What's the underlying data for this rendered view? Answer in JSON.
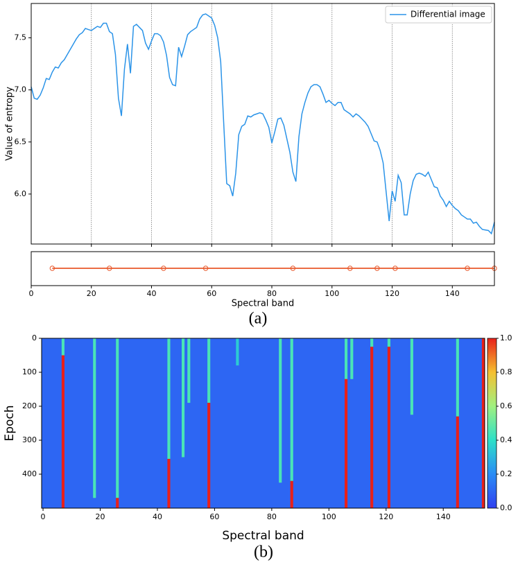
{
  "chart_data": [
    {
      "type": "line",
      "ylabel": "Value of entropy",
      "legend": "upper right",
      "grid": true,
      "xlim": [
        0,
        154
      ],
      "xticks": [
        20,
        40,
        60,
        80,
        100,
        120,
        140
      ],
      "ylim": [
        5.52,
        7.83
      ],
      "yticks": [
        {
          "value": 6.0,
          "label": "6.0"
        },
        {
          "value": 6.5,
          "label": "6.5"
        },
        {
          "value": 7.0,
          "label": "7.0"
        },
        {
          "value": 7.5,
          "label": "7.5"
        }
      ],
      "series": [
        {
          "name": "Differential image",
          "color": "#2a93e8",
          "values": [
            7.03,
            6.92,
            6.91,
            6.95,
            7.02,
            7.11,
            7.1,
            7.17,
            7.22,
            7.21,
            7.26,
            7.29,
            7.34,
            7.39,
            7.44,
            7.49,
            7.53,
            7.55,
            7.59,
            7.58,
            7.57,
            7.59,
            7.61,
            7.6,
            7.64,
            7.64,
            7.56,
            7.54,
            7.34,
            6.92,
            6.75,
            7.2,
            7.44,
            7.16,
            7.61,
            7.63,
            7.6,
            7.57,
            7.45,
            7.39,
            7.47,
            7.54,
            7.54,
            7.52,
            7.46,
            7.33,
            7.12,
            7.05,
            7.04,
            7.41,
            7.32,
            7.42,
            7.53,
            7.56,
            7.58,
            7.6,
            7.68,
            7.72,
            7.73,
            7.71,
            7.69,
            7.62,
            7.5,
            7.27,
            6.68,
            6.1,
            6.08,
            5.98,
            6.2,
            6.57,
            6.65,
            6.67,
            6.75,
            6.74,
            6.76,
            6.77,
            6.78,
            6.77,
            6.71,
            6.64,
            6.49,
            6.6,
            6.72,
            6.73,
            6.66,
            6.53,
            6.4,
            6.21,
            6.12,
            6.55,
            6.77,
            6.88,
            6.97,
            7.03,
            7.05,
            7.05,
            7.03,
            6.96,
            6.88,
            6.9,
            6.87,
            6.85,
            6.88,
            6.88,
            6.81,
            6.79,
            6.77,
            6.74,
            6.77,
            6.75,
            6.72,
            6.69,
            6.65,
            6.58,
            6.51,
            6.5,
            6.42,
            6.3,
            6.02,
            5.74,
            6.03,
            5.93,
            6.18,
            6.11,
            5.8,
            5.8,
            6.0,
            6.13,
            6.19,
            6.2,
            6.19,
            6.17,
            6.21,
            6.14,
            6.07,
            6.06,
            5.98,
            5.94,
            5.88,
            5.93,
            5.89,
            5.86,
            5.84,
            5.8,
            5.78,
            5.76,
            5.76,
            5.72,
            5.73,
            5.69,
            5.66,
            5.655,
            5.65,
            5.62,
            5.73
          ]
        }
      ]
    },
    {
      "type": "strip",
      "xlabel": "Spectral band",
      "caption": "(a)",
      "color": "#e8572a",
      "xlim": [
        0,
        154
      ],
      "xticks": [
        0,
        20,
        40,
        60,
        80,
        100,
        120,
        140
      ],
      "x": [
        7,
        26,
        44,
        58,
        87,
        106,
        115,
        121,
        145,
        154
      ]
    },
    {
      "type": "heatmap",
      "xlabel": "Spectral band",
      "ylabel": "Epoch",
      "caption": "(b)",
      "xlim": [
        -0.5,
        154.5
      ],
      "xticks": [
        0,
        20,
        40,
        60,
        80,
        100,
        120,
        140
      ],
      "ylim": [
        0,
        500
      ],
      "yticks": [
        0,
        100,
        200,
        300,
        400
      ],
      "clim": [
        0,
        1
      ],
      "cticks": [
        {
          "value": 0,
          "label": "0.0"
        },
        {
          "value": 0.2,
          "label": "0.2"
        },
        {
          "value": 0.4,
          "label": "0.4"
        },
        {
          "value": 0.6,
          "label": "0.6"
        },
        {
          "value": 0.8,
          "label": "0.8"
        },
        {
          "value": 1,
          "label": "1.0"
        }
      ],
      "background": 0.1,
      "cells": [
        [
          7,
          0,
          50,
          0.45
        ],
        [
          7,
          50,
          500,
          1
        ],
        [
          18,
          0,
          470,
          0.45
        ],
        [
          26,
          0,
          470,
          0.45
        ],
        [
          26,
          470,
          500,
          1
        ],
        [
          44,
          0,
          355,
          0.45
        ],
        [
          44,
          355,
          500,
          1
        ],
        [
          49,
          0,
          350,
          0.45
        ],
        [
          51,
          0,
          190,
          0.45
        ],
        [
          58,
          0,
          190,
          0.45
        ],
        [
          58,
          190,
          500,
          1
        ],
        [
          68,
          0,
          80,
          0.35
        ],
        [
          83,
          0,
          425,
          0.45
        ],
        [
          87,
          0,
          420,
          0.45
        ],
        [
          87,
          420,
          500,
          1
        ],
        [
          106,
          0,
          120,
          0.45
        ],
        [
          106,
          120,
          500,
          1
        ],
        [
          108,
          0,
          120,
          0.45
        ],
        [
          115,
          0,
          25,
          0.45
        ],
        [
          115,
          25,
          500,
          1
        ],
        [
          121,
          0,
          25,
          0.45
        ],
        [
          121,
          25,
          500,
          1
        ],
        [
          129,
          0,
          225,
          0.45
        ],
        [
          145,
          0,
          230,
          0.45
        ],
        [
          145,
          230,
          500,
          1
        ],
        [
          154,
          0,
          500,
          1
        ]
      ]
    }
  ]
}
